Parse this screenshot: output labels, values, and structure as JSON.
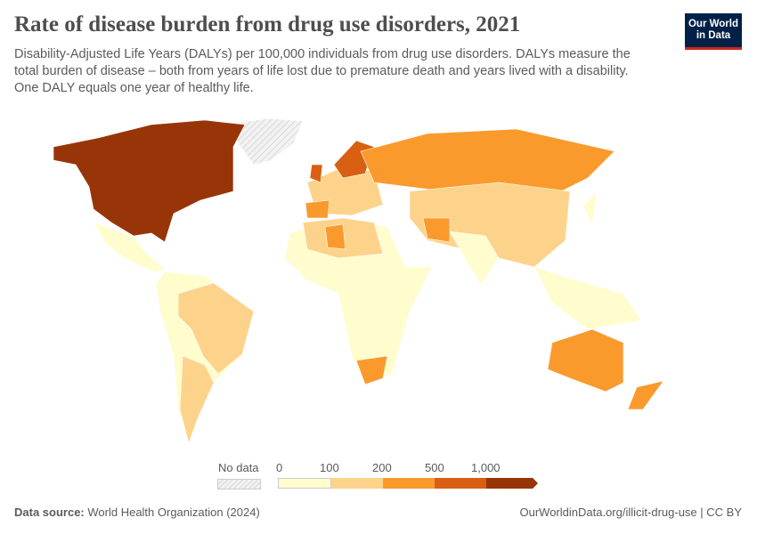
{
  "header": {
    "title": "Rate of disease burden from drug use disorders, 2021",
    "subtitle": "Disability-Adjusted Life Years (DALYs) per 100,000 individuals from drug use disorders. DALYs measure the total burden of disease – both from years of life lost due to premature death and years lived with a disability. One DALY equals one year of healthy life.",
    "logo": "Our World in Data"
  },
  "legend": {
    "no_data_label": "No data",
    "ticks": [
      "0",
      "100",
      "200",
      "500",
      "1,000"
    ],
    "colors": [
      "#fffccd",
      "#fdd38b",
      "#fa9a2d",
      "#d95f12",
      "#983508"
    ],
    "no_data_color": "#e5e5e5"
  },
  "footer": {
    "source_label": "Data source:",
    "source": "World Health Organization (2024)",
    "url": "OurWorldinData.org/illicit-drug-use | CC BY"
  }
}
